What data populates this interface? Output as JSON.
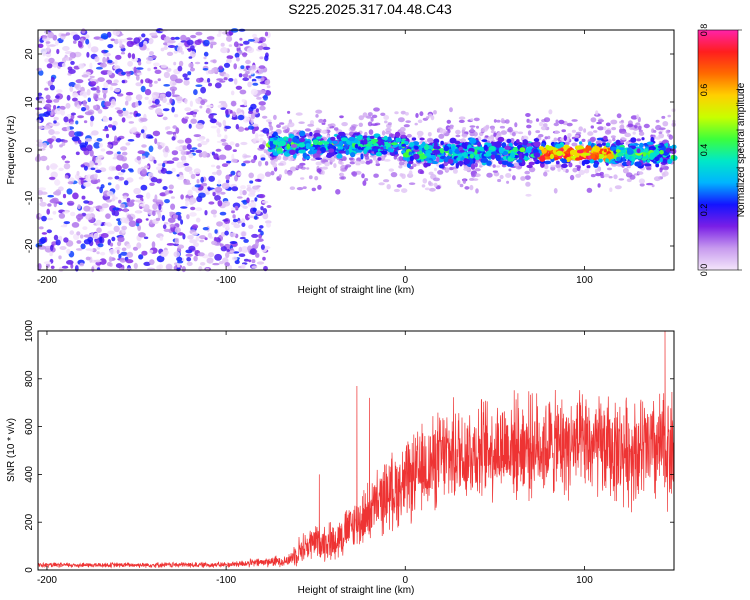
{
  "title": "S225.2025.317.04.48.C43",
  "chart_data": [
    {
      "type": "heatmap",
      "name": "spectrogram",
      "xlabel": "Height of straight line (km)",
      "ylabel": "Frequency (Hz)",
      "xlim": [
        -205,
        150
      ],
      "ylim": [
        -25,
        25
      ],
      "xticks": [
        -200,
        -100,
        0,
        100
      ],
      "yticks": [
        -20,
        -10,
        0,
        10,
        20
      ],
      "noise_region": {
        "x": [
          -205,
          -76
        ],
        "y": [
          -25,
          25
        ],
        "amplitude_range": [
          0.0,
          0.25
        ]
      },
      "signal_band": {
        "x": [
          -76,
          150
        ],
        "center_hz": 0,
        "half_width_hz": 3.5,
        "amplitude_range": [
          0.1,
          0.8
        ],
        "peak_x": [
          75,
          115
        ]
      },
      "colorbar": {
        "label": "Normalized spectral amplitude",
        "range": [
          0,
          0.8
        ],
        "ticks": [
          "0.0",
          "0.2",
          "0.4",
          "0.6",
          "0.8"
        ],
        "colors": [
          "#f4e6fb",
          "#c79aee",
          "#7a1fe6",
          "#1414ff",
          "#00b4ff",
          "#00e8c8",
          "#3cff3c",
          "#c8ff00",
          "#ffd000",
          "#ff6a00",
          "#ff1e1e",
          "#ff22aa"
        ]
      }
    },
    {
      "type": "line",
      "name": "snr",
      "xlabel": "Height of straight line (km)",
      "ylabel": "SNR (10 * v/v)",
      "xlim": [
        -205,
        150
      ],
      "ylim": [
        0,
        1000
      ],
      "xticks": [
        -200,
        -100,
        0,
        100
      ],
      "yticks": [
        0,
        200,
        400,
        600,
        800,
        1000
      ],
      "color": "#ee3333",
      "envelope": {
        "x": [
          -205,
          -100,
          -65,
          -60,
          -50,
          -40,
          -30,
          -20,
          -10,
          0,
          10,
          20,
          30,
          40,
          60,
          80,
          100,
          120,
          140,
          150
        ],
        "mean": [
          20,
          22,
          40,
          80,
          120,
          120,
          180,
          240,
          320,
          360,
          420,
          470,
          490,
          500,
          520,
          520,
          520,
          500,
          500,
          520
        ],
        "spread": [
          12,
          14,
          30,
          70,
          90,
          100,
          120,
          150,
          180,
          200,
          220,
          240,
          250,
          250,
          250,
          250,
          250,
          260,
          280,
          300
        ]
      },
      "notable_peaks": [
        {
          "x": -48,
          "y": 400
        },
        {
          "x": -27,
          "y": 770
        },
        {
          "x": -20,
          "y": 720
        },
        {
          "x": 145,
          "y": 1000
        }
      ]
    }
  ]
}
